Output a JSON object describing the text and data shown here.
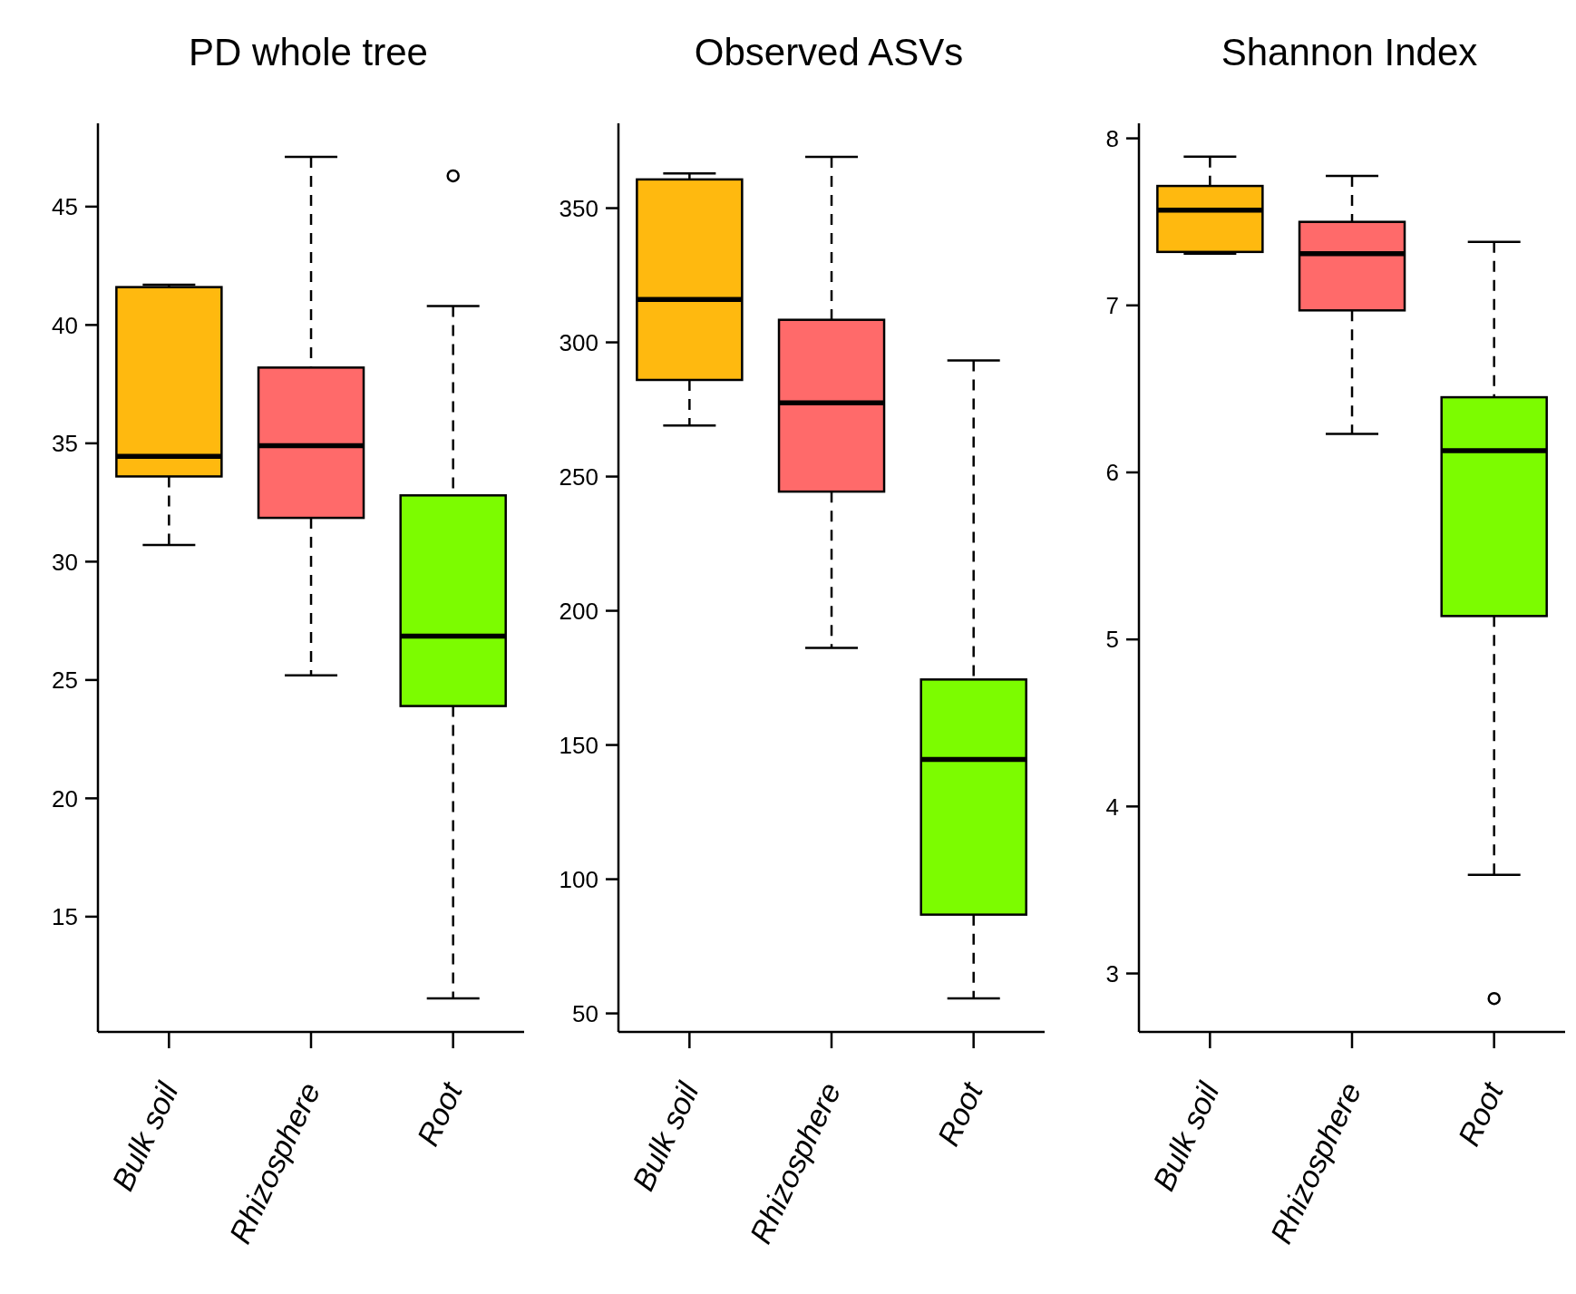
{
  "chart_data": [
    {
      "type": "box",
      "title": "PD whole tree",
      "categories": [
        "Bulk soil",
        "Rhizosphere",
        "Root"
      ],
      "colors": [
        "#ffb90f",
        "#ff6a6a",
        "#7cfc00"
      ],
      "boxes": [
        {
          "low": 30.7,
          "q1": 33.6,
          "median": 34.45,
          "q3": 41.6,
          "high": 41.7
        },
        {
          "low": 25.2,
          "q1": 31.85,
          "median": 34.9,
          "q3": 38.2,
          "high": 47.1
        },
        {
          "low": 11.55,
          "q1": 23.9,
          "median": 26.85,
          "q3": 32.8,
          "high": 40.8,
          "outliers": [
            46.3
          ]
        }
      ],
      "ylim": [
        10.13,
        48.52
      ],
      "yticks": [
        15,
        20,
        25,
        30,
        35,
        40,
        45
      ],
      "grid": false,
      "legend": false
    },
    {
      "type": "box",
      "title": "Observed ASVs",
      "categories": [
        "Bulk soil",
        "Rhizosphere",
        "Root"
      ],
      "colors": [
        "#ffb90f",
        "#ff6a6a",
        "#7cfc00"
      ],
      "boxes": [
        {
          "low": 269,
          "q1": 286,
          "median": 316,
          "q3": 360.7,
          "high": 362.9
        },
        {
          "low": 186.2,
          "q1": 244.4,
          "median": 277.5,
          "q3": 308.4,
          "high": 369.1
        },
        {
          "low": 55.6,
          "q1": 86.8,
          "median": 144.6,
          "q3": 174.4,
          "high": 293.3
        }
      ],
      "ylim": [
        43.1,
        381.6
      ],
      "yticks": [
        50,
        100,
        150,
        200,
        250,
        300,
        350
      ],
      "grid": false,
      "legend": false
    },
    {
      "type": "box",
      "title": "Shannon Index",
      "categories": [
        "Bulk soil",
        "Rhizosphere",
        "Root"
      ],
      "colors": [
        "#ffb90f",
        "#ff6a6a",
        "#7cfc00"
      ],
      "boxes": [
        {
          "low": 7.31,
          "q1": 7.32,
          "median": 7.57,
          "q3": 7.715,
          "high": 7.89
        },
        {
          "low": 6.23,
          "q1": 6.97,
          "median": 7.31,
          "q3": 7.5,
          "high": 7.775
        },
        {
          "low": 3.59,
          "q1": 5.14,
          "median": 6.13,
          "q3": 6.45,
          "high": 7.38,
          "outliers": [
            2.85
          ]
        }
      ],
      "ylim": [
        2.65,
        8.09
      ],
      "yticks": [
        3,
        4,
        5,
        6,
        7,
        8
      ],
      "grid": false,
      "legend": false
    }
  ]
}
